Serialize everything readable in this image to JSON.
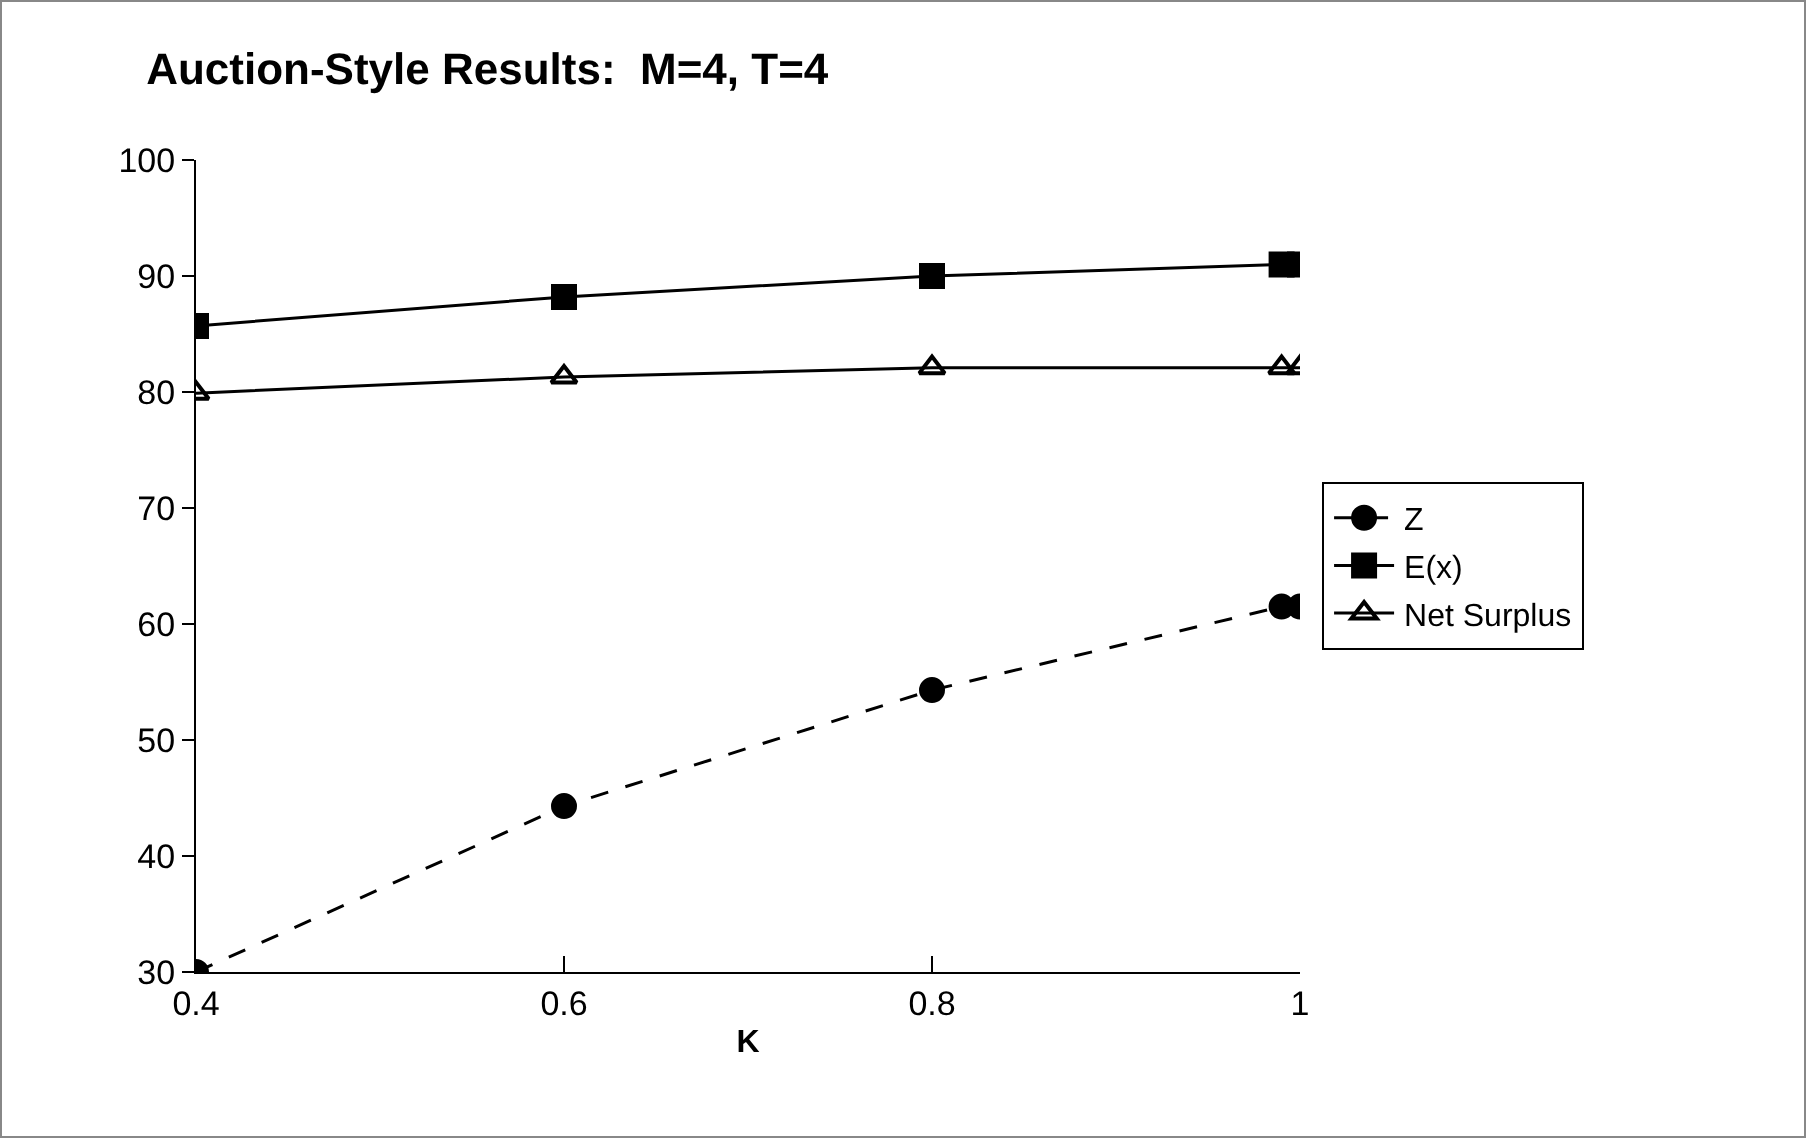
{
  "chart_data": {
    "type": "line",
    "title": "Auction-Style Results:  M=4, T=4",
    "xlabel": "K",
    "x": [
      0.4,
      0.6,
      0.8,
      0.99,
      1
    ],
    "series": [
      {
        "name": "Z",
        "color": "#000000",
        "marker": "circle",
        "line_style": "dashed",
        "values": [
          30,
          44.3,
          54.3,
          61.5,
          61.5
        ]
      },
      {
        "name": "E(x)",
        "color": "#000000",
        "marker": "square",
        "line_style": "solid",
        "values": [
          85.7,
          88.2,
          90,
          91,
          91
        ]
      },
      {
        "name": "Net Surplus",
        "color": "#000000",
        "marker": "triangle",
        "line_style": "solid",
        "values": [
          79.9,
          81.3,
          82.1,
          82.1,
          82.1
        ]
      }
    ],
    "xlim": [
      0.4,
      1
    ],
    "xticks": [
      0.4,
      0.6,
      0.8,
      1
    ],
    "ylim": [
      30,
      100
    ],
    "yticks": [
      30,
      40,
      50,
      60,
      70,
      80,
      90,
      100
    ],
    "grid": false,
    "legend": "right"
  }
}
